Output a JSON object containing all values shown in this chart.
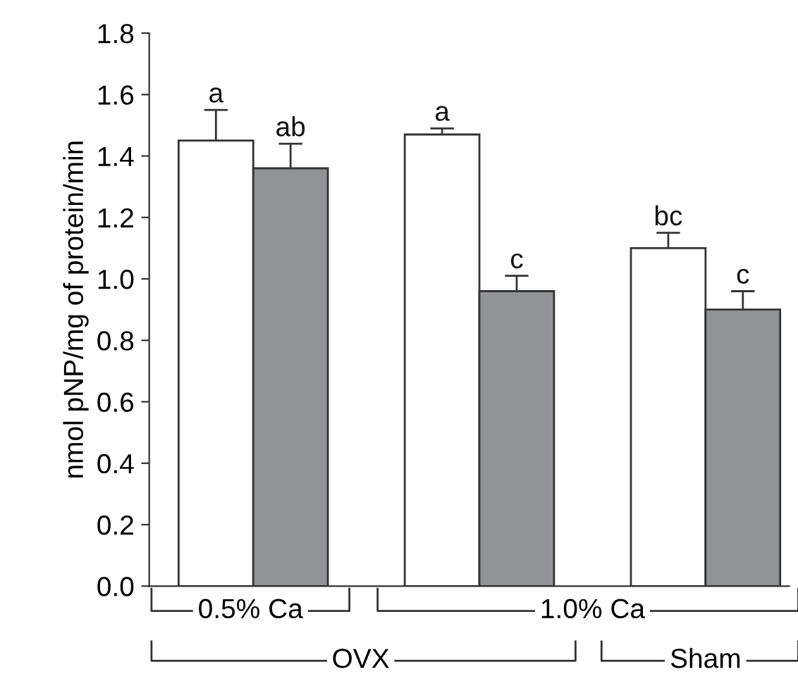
{
  "chart_data": {
    "type": "bar",
    "ylabel": "nmol pNP/mg of protein/min",
    "categories": [
      null,
      null,
      null
    ],
    "series": [
      {
        "color": "#ffffff",
        "values": [
          1.45,
          1.47,
          1.1
        ],
        "errors": [
          0.1,
          0.02,
          0.05
        ],
        "value_labels": [
          "a",
          "a",
          "bc"
        ]
      },
      {
        "color": "#929396",
        "values": [
          1.36,
          0.96,
          0.9
        ],
        "errors": [
          0.08,
          0.05,
          0.06
        ],
        "value_labels": [
          "ab",
          "c",
          "c"
        ]
      }
    ],
    "ylim": [
      0,
      1.8
    ],
    "yticks": [
      {
        "value": 0,
        "label": "0.0"
      },
      {
        "value": 0.2,
        "label": "0.2"
      },
      {
        "value": 0.4,
        "label": "0.4"
      },
      {
        "value": 0.6,
        "label": "0.6"
      },
      {
        "value": 0.8,
        "label": "0.8"
      },
      {
        "value": 1.0,
        "label": "1.0"
      },
      {
        "value": 1.2,
        "label": "1.2"
      },
      {
        "value": 1.4,
        "label": "1.4"
      },
      {
        "value": 1.6,
        "label": "1.6"
      },
      {
        "value": 1.8,
        "label": "1.8"
      }
    ],
    "annotations": [
      "0.5% Ca",
      "1.0% Ca",
      "OVX",
      "Sham"
    ]
  }
}
